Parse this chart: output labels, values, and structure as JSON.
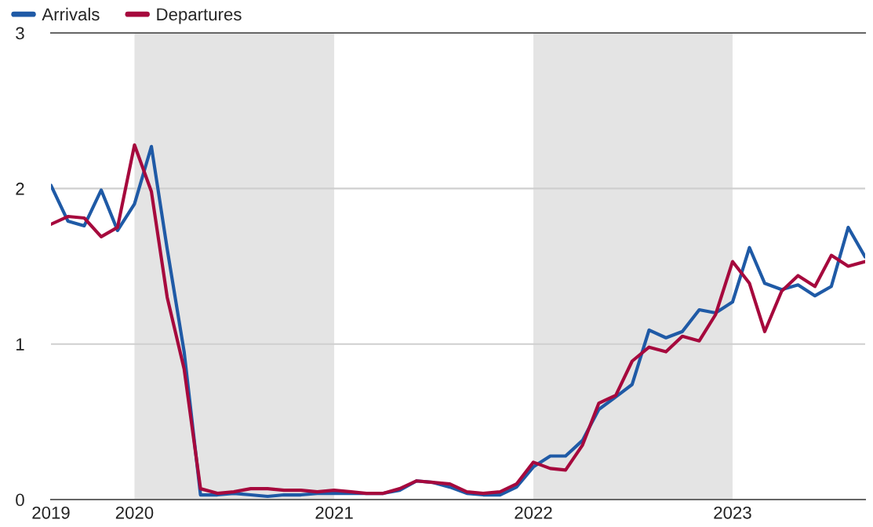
{
  "chart_data": {
    "type": "line",
    "x": [
      "2019-08",
      "2019-09",
      "2019-10",
      "2019-11",
      "2019-12",
      "2020-01",
      "2020-02",
      "2020-03",
      "2020-04",
      "2020-05",
      "2020-06",
      "2020-07",
      "2020-08",
      "2020-09",
      "2020-10",
      "2020-11",
      "2020-12",
      "2021-01",
      "2021-02",
      "2021-03",
      "2021-04",
      "2021-05",
      "2021-06",
      "2021-07",
      "2021-08",
      "2021-09",
      "2021-10",
      "2021-11",
      "2021-12",
      "2022-01",
      "2022-02",
      "2022-03",
      "2022-04",
      "2022-05",
      "2022-06",
      "2022-07",
      "2022-08",
      "2022-09",
      "2022-10",
      "2022-11",
      "2022-12",
      "2023-01",
      "2023-02",
      "2023-03",
      "2023-04",
      "2023-05",
      "2023-06",
      "2023-07",
      "2023-08",
      "2023-09"
    ],
    "series": [
      {
        "name": "Arrivals",
        "color": "#1f5aa6",
        "values": [
          2.02,
          1.79,
          1.76,
          1.99,
          1.73,
          1.9,
          2.27,
          1.61,
          0.95,
          0.03,
          0.03,
          0.04,
          0.03,
          0.02,
          0.03,
          0.03,
          0.04,
          0.04,
          0.04,
          0.04,
          0.04,
          0.06,
          0.12,
          0.11,
          0.08,
          0.04,
          0.03,
          0.03,
          0.08,
          0.21,
          0.28,
          0.28,
          0.38,
          0.58,
          0.66,
          0.74,
          1.09,
          1.04,
          1.08,
          1.22,
          1.2,
          1.27,
          1.62,
          1.39,
          1.35,
          1.38,
          1.31,
          1.37,
          1.75,
          1.56
        ]
      },
      {
        "name": "Departures",
        "color": "#a6093d",
        "values": [
          1.77,
          1.82,
          1.81,
          1.69,
          1.75,
          2.28,
          1.98,
          1.3,
          0.84,
          0.07,
          0.04,
          0.05,
          0.07,
          0.07,
          0.06,
          0.06,
          0.05,
          0.06,
          0.05,
          0.04,
          0.04,
          0.07,
          0.12,
          0.11,
          0.1,
          0.05,
          0.04,
          0.05,
          0.1,
          0.24,
          0.2,
          0.19,
          0.35,
          0.62,
          0.67,
          0.89,
          0.98,
          0.95,
          1.05,
          1.02,
          1.19,
          1.53,
          1.39,
          1.08,
          1.34,
          1.44,
          1.37,
          1.57,
          1.5,
          1.53
        ]
      }
    ],
    "xlim": [
      "2019-08",
      "2023-09"
    ],
    "xticks": [
      {
        "value": "2019-08",
        "label": "2019"
      },
      {
        "value": "2020-01",
        "label": "2020"
      },
      {
        "value": "2021-01",
        "label": "2021"
      },
      {
        "value": "2022-01",
        "label": "2022"
      },
      {
        "value": "2023-01",
        "label": "2023"
      }
    ],
    "ylim": [
      0,
      3
    ],
    "yticks": [
      0,
      1,
      2,
      3
    ],
    "bands": [
      {
        "axis": "x",
        "from": "2020-01",
        "to": "2021-01",
        "color": "#e4e4e4"
      },
      {
        "axis": "x",
        "from": "2022-01",
        "to": "2023-01",
        "color": "#e4e4e4"
      }
    ],
    "grid": "y",
    "legend": "top left",
    "line_style": "solid",
    "marker": "none"
  }
}
